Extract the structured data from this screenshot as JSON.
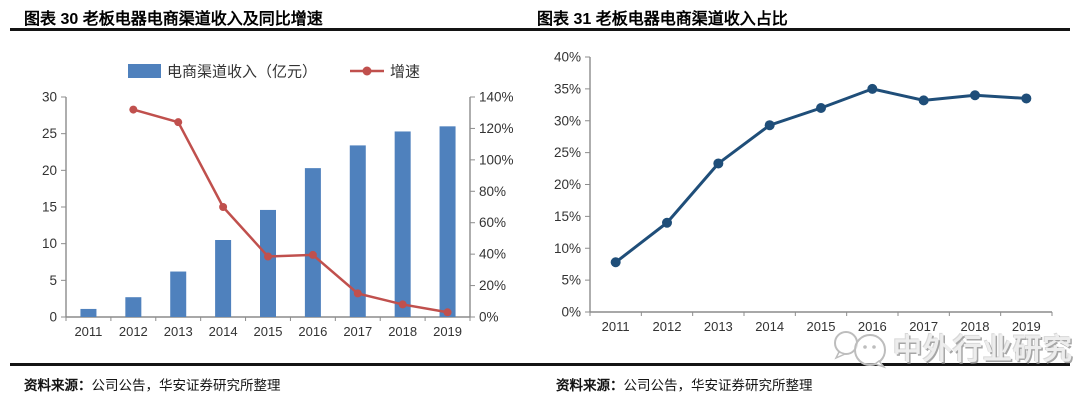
{
  "header": {
    "left_title": "图表 30 老板电器电商渠道收入及同比增速",
    "right_title": "图表 31 老板电器电商渠道收入占比"
  },
  "footer": {
    "left_source": {
      "label": "资料来源：",
      "text": "公司公告，华安证券研究所整理"
    },
    "right_source": {
      "label": "资料来源：",
      "text": "公司公告，华安证券研究所整理"
    },
    "watermark": "中外行业研究"
  },
  "icons": {
    "watermark_icon": "chat-bubbles-icon"
  },
  "colors": {
    "bar": "#4F81BD",
    "growth_line": "#C0504D",
    "share_line": "#1F4E79",
    "axis": "#8C8C8C",
    "tick_label": "#333333"
  },
  "chart_data": [
    {
      "type": "bar+line",
      "title": "老板电器电商渠道收入及同比增速",
      "categories": [
        "2011",
        "2012",
        "2013",
        "2014",
        "2015",
        "2016",
        "2017",
        "2018",
        "2019"
      ],
      "series": [
        {
          "name": "电商渠道收入（亿元）",
          "type": "bar",
          "axis": "left",
          "values": [
            1.1,
            2.7,
            6.2,
            10.5,
            14.6,
            20.3,
            23.4,
            25.3,
            26.0
          ]
        },
        {
          "name": "增速",
          "type": "line",
          "axis": "right",
          "values": [
            null,
            132,
            124,
            70,
            38.5,
            39.5,
            15,
            8,
            3
          ]
        }
      ],
      "axes": {
        "left": {
          "min": 0,
          "max": 30,
          "step": 5,
          "suffix": ""
        },
        "right": {
          "min": 0,
          "max": 140,
          "step": 20,
          "suffix": "%"
        }
      },
      "legend_position": "top",
      "grid": false
    },
    {
      "type": "line",
      "title": "老板电器电商渠道收入占比",
      "categories": [
        "2011",
        "2012",
        "2013",
        "2014",
        "2015",
        "2016",
        "2017",
        "2018",
        "2019"
      ],
      "series": [
        {
          "name": "电商渠道收入占比",
          "type": "line",
          "axis": "left",
          "values": [
            7.8,
            14,
            23.3,
            29.3,
            32,
            35,
            33.2,
            34,
            33.5
          ]
        }
      ],
      "axes": {
        "left": {
          "min": 0,
          "max": 40,
          "step": 5,
          "suffix": "%"
        }
      },
      "legend_position": "none",
      "grid": false
    }
  ]
}
